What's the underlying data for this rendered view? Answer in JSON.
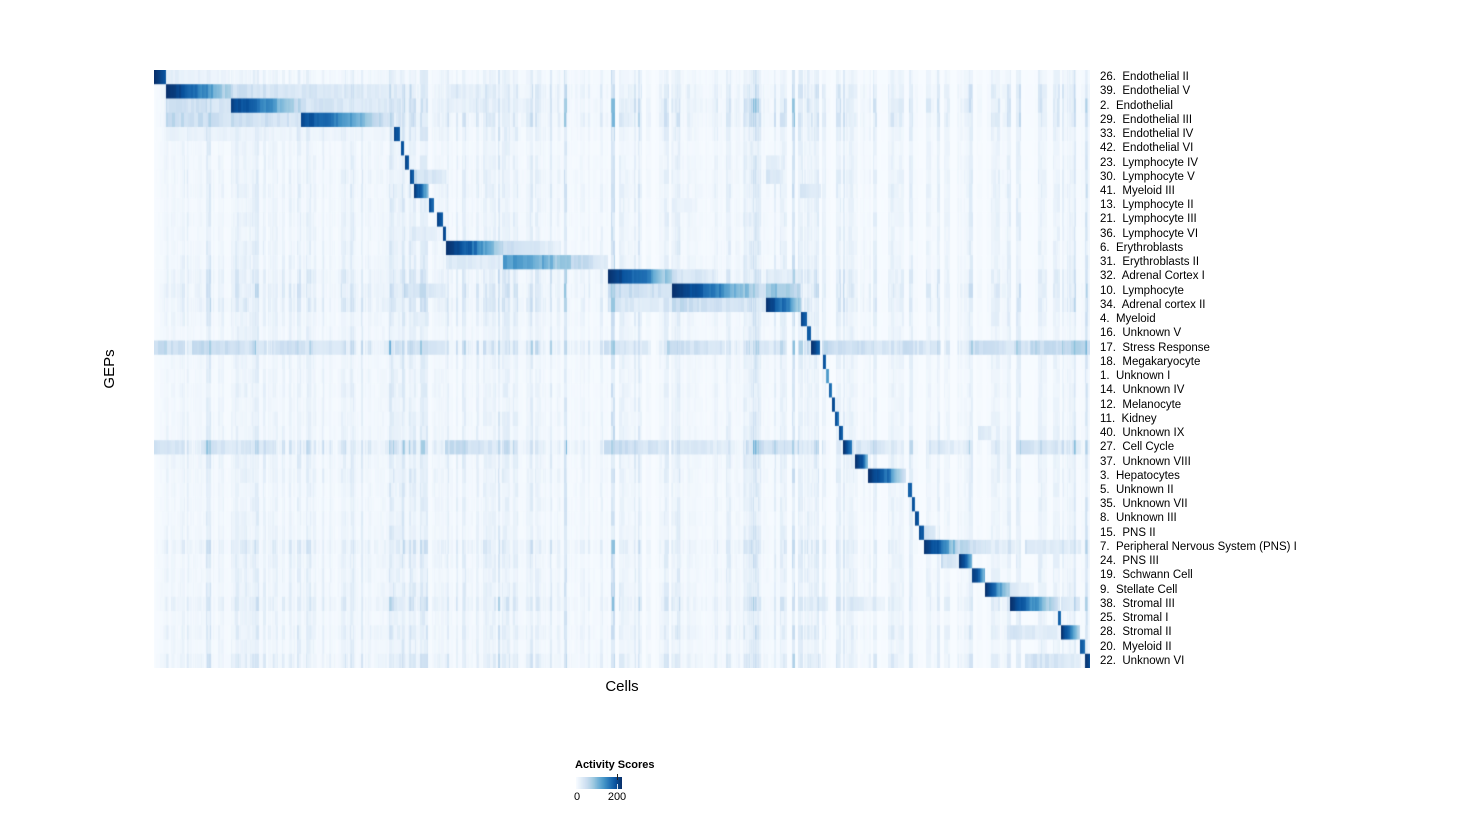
{
  "figure": {
    "background": "#ffffff",
    "y_axis_label": "GEPs",
    "x_axis_label": "Cells"
  },
  "legend": {
    "title": "Activity Scores",
    "tick_labels": [
      "0",
      "200"
    ],
    "tick_values": [
      0,
      200
    ],
    "value_min": 0,
    "value_max": 224
  },
  "chart_data": {
    "type": "heatmap",
    "title": "",
    "xlabel": "Cells",
    "ylabel": "GEPs",
    "legend_title": "Activity Scores",
    "value_range": [
      0,
      224
    ],
    "grid": false,
    "legend_position": "bottom-left",
    "description": "Block-diagonal heatmap of GEP activity scores across cells; cells (columns) grouped by their dominant GEP (rows). Values below are normalized 0-1 of max ~224; segments are [x0,x1,v0,v1] fractions of plot width.",
    "colormap": {
      "name": "Blues",
      "stops": [
        "#f7fbff",
        "#deebf7",
        "#c6dbef",
        "#9ecae1",
        "#6baed6",
        "#4292c6",
        "#2171b5",
        "#08519c",
        "#08306b"
      ]
    },
    "noise": {
      "seed": 1337,
      "base": 0.2,
      "spike_chance": 0.055
    },
    "hot_columns": [
      [
        0.63,
        0.646,
        0.1
      ],
      [
        0.695,
        0.71,
        0.07
      ],
      [
        0.74,
        0.752,
        0.06
      ],
      [
        0.298,
        0.312,
        0.05
      ],
      [
        0.266,
        0.274,
        0.05
      ],
      [
        0.553,
        0.562,
        0.05
      ],
      [
        0.858,
        0.87,
        0.05
      ],
      [
        0.973,
        0.985,
        0.06
      ],
      [
        0.995,
        1.0,
        0.07
      ],
      [
        0.013,
        0.254,
        0.035
      ],
      [
        0.311,
        0.484,
        0.025
      ],
      [
        0.553,
        0.653,
        0.03
      ]
    ],
    "rows": [
      {
        "label": "26.  Endothelial II",
        "noise": 0.5,
        "segments": [
          [
            0.0,
            0.0128,
            1.0,
            0.85
          ],
          [
            0.0128,
            0.081,
            0.1,
            0.05
          ]
        ]
      },
      {
        "label": "39.  Endothelial V",
        "noise": 0.9,
        "segments": [
          [
            0.0128,
            0.045,
            1.0,
            0.78
          ],
          [
            0.045,
            0.0812,
            0.75,
            0.28
          ],
          [
            0.0812,
            0.156,
            0.22,
            0.14
          ],
          [
            0.156,
            0.2543,
            0.16,
            0.09
          ],
          [
            0.311,
            0.372,
            0.1,
            0.06
          ]
        ]
      },
      {
        "label": "2.  Endothelial",
        "noise": 1.0,
        "segments": [
          [
            0.0128,
            0.0812,
            0.24,
            0.16
          ],
          [
            0.0812,
            0.115,
            0.95,
            0.72
          ],
          [
            0.115,
            0.156,
            0.7,
            0.24
          ],
          [
            0.156,
            0.2543,
            0.18,
            0.11
          ],
          [
            0.311,
            0.4,
            0.09,
            0.05
          ]
        ]
      },
      {
        "label": "29.  Endothelial III",
        "noise": 1.0,
        "segments": [
          [
            0.0128,
            0.0812,
            0.26,
            0.18
          ],
          [
            0.0812,
            0.156,
            0.24,
            0.16
          ],
          [
            0.156,
            0.2,
            0.92,
            0.66
          ],
          [
            0.2,
            0.2543,
            0.64,
            0.16
          ]
        ]
      },
      {
        "label": "33.  Endothelial IV",
        "noise": 0.6,
        "segments": [
          [
            0.0128,
            0.2543,
            0.07,
            0.04
          ],
          [
            0.256,
            0.262,
            0.95,
            0.82
          ]
        ]
      },
      {
        "label": "42.  Endothelial VI",
        "noise": 0.45,
        "segments": [
          [
            0.263,
            0.267,
            0.9,
            0.78
          ]
        ]
      },
      {
        "label": "23.  Lymphocyte IV",
        "noise": 0.5,
        "segments": [
          [
            0.268,
            0.272,
            0.95,
            0.84
          ],
          [
            0.6528,
            0.668,
            0.14,
            0.09
          ]
        ]
      },
      {
        "label": "30.  Lymphocyte V",
        "noise": 0.6,
        "segments": [
          [
            0.2725,
            0.277,
            0.95,
            0.8
          ],
          [
            0.277,
            0.311,
            0.22,
            0.11
          ],
          [
            0.6528,
            0.672,
            0.18,
            0.1
          ]
        ]
      },
      {
        "label": "41.  Myeloid III",
        "noise": 0.6,
        "segments": [
          [
            0.277,
            0.286,
            1.0,
            0.75
          ],
          [
            0.286,
            0.2928,
            0.72,
            0.32
          ],
          [
            0.69,
            0.712,
            0.14,
            0.09
          ]
        ]
      },
      {
        "label": "13.  Lymphocyte II",
        "noise": 0.5,
        "segments": [
          [
            0.2928,
            0.2983,
            0.9,
            0.78
          ],
          [
            0.5534,
            0.58,
            0.09,
            0.05
          ]
        ]
      },
      {
        "label": "21.  Lymphocyte III",
        "noise": 0.55,
        "segments": [
          [
            0.3023,
            0.3077,
            0.92,
            0.78
          ]
        ]
      },
      {
        "label": "36.  Lymphocyte VI",
        "noise": 0.5,
        "segments": [
          [
            0.3077,
            0.3109,
            0.95,
            0.84
          ],
          [
            0.2714,
            0.3023,
            0.13,
            0.07
          ]
        ]
      },
      {
        "label": "6.  Erythroblasts",
        "noise": 0.55,
        "segments": [
          [
            0.3109,
            0.345,
            1.0,
            0.72
          ],
          [
            0.345,
            0.3718,
            0.7,
            0.3
          ],
          [
            0.3718,
            0.434,
            0.22,
            0.09
          ]
        ]
      },
      {
        "label": "31.  Erythroblasts II",
        "noise": 0.6,
        "segments": [
          [
            0.3109,
            0.3718,
            0.16,
            0.09
          ],
          [
            0.3718,
            0.42,
            0.6,
            0.46
          ],
          [
            0.42,
            0.484,
            0.44,
            0.11
          ]
        ]
      },
      {
        "label": "32.  Adrenal Cortex I",
        "noise": 0.8,
        "segments": [
          [
            0.485,
            0.53,
            1.0,
            0.66
          ],
          [
            0.53,
            0.5534,
            0.63,
            0.26
          ],
          [
            0.5534,
            0.6,
            0.2,
            0.11
          ],
          [
            0.6528,
            0.69,
            0.14,
            0.09
          ]
        ]
      },
      {
        "label": "10.  Lymphocyte",
        "noise": 1.0,
        "segments": [
          [
            0.2671,
            0.3109,
            0.2,
            0.11
          ],
          [
            0.485,
            0.5534,
            0.26,
            0.16
          ],
          [
            0.5534,
            0.6,
            1.0,
            0.72
          ],
          [
            0.6,
            0.6528,
            0.7,
            0.2
          ],
          [
            0.6528,
            0.6902,
            0.42,
            0.28
          ]
        ]
      },
      {
        "label": "34.  Adrenal cortex II",
        "noise": 0.9,
        "segments": [
          [
            0.485,
            0.5534,
            0.16,
            0.1
          ],
          [
            0.5534,
            0.6528,
            0.24,
            0.13
          ],
          [
            0.6528,
            0.68,
            1.0,
            0.62
          ],
          [
            0.68,
            0.6902,
            0.58,
            0.28
          ]
        ]
      },
      {
        "label": "4.  Myeloid",
        "noise": 0.6,
        "segments": [
          [
            0.6902,
            0.6966,
            0.95,
            0.8
          ],
          [
            0.277,
            0.2928,
            0.13,
            0.08
          ]
        ]
      },
      {
        "label": "16.  Unknown V",
        "noise": 0.5,
        "segments": [
          [
            0.6966,
            0.7019,
            0.9,
            0.78
          ]
        ]
      },
      {
        "label": "17.  Stress Response",
        "noise": 1.4,
        "segments": [
          [
            0.7019,
            0.7115,
            1.0,
            0.76
          ],
          [
            0.0,
            0.03,
            0.26,
            0.18
          ],
          [
            0.04,
            0.12,
            0.24,
            0.16
          ],
          [
            0.13,
            0.2,
            0.21,
            0.14
          ],
          [
            0.27,
            0.31,
            0.24,
            0.14
          ],
          [
            0.48,
            0.53,
            0.19,
            0.11
          ],
          [
            0.55,
            0.61,
            0.24,
            0.14
          ],
          [
            0.64,
            0.67,
            0.19,
            0.11
          ],
          [
            0.7151,
            0.79,
            0.26,
            0.14
          ],
          [
            0.8,
            0.84,
            0.21,
            0.11
          ],
          [
            0.87,
            0.935,
            0.24,
            0.14
          ],
          [
            0.935,
            0.97,
            0.28,
            0.19
          ],
          [
            0.97,
            1.0,
            0.33,
            0.24
          ]
        ]
      },
      {
        "label": "18.  Megakaryocyte",
        "noise": 0.5,
        "segments": [
          [
            0.7137,
            0.7169,
            0.9,
            0.78
          ]
        ]
      },
      {
        "label": "1.  Unknown I",
        "noise": 0.45,
        "segments": [
          [
            0.7169,
            0.7201,
            0.62,
            0.5
          ]
        ]
      },
      {
        "label": "14.  Unknown IV",
        "noise": 0.5,
        "segments": [
          [
            0.7201,
            0.7233,
            0.9,
            0.76
          ]
        ]
      },
      {
        "label": "12.  Melanocyte",
        "noise": 0.45,
        "segments": [
          [
            0.7233,
            0.727,
            0.92,
            0.8
          ]
        ]
      },
      {
        "label": "11.  Kidney",
        "noise": 0.5,
        "segments": [
          [
            0.727,
            0.7308,
            0.9,
            0.77
          ]
        ]
      },
      {
        "label": "40.  Unknown IX",
        "noise": 0.55,
        "segments": [
          [
            0.7308,
            0.7361,
            0.95,
            0.8
          ],
          [
            0.88,
            0.895,
            0.13,
            0.08
          ]
        ]
      },
      {
        "label": "27.  Cell Cycle",
        "noise": 1.3,
        "segments": [
          [
            0.7361,
            0.7457,
            1.0,
            0.72
          ],
          [
            0.0,
            0.03,
            0.23,
            0.14
          ],
          [
            0.05,
            0.13,
            0.19,
            0.11
          ],
          [
            0.31,
            0.37,
            0.24,
            0.14
          ],
          [
            0.48,
            0.55,
            0.24,
            0.14
          ],
          [
            0.56,
            0.62,
            0.17,
            0.09
          ],
          [
            0.64,
            0.71,
            0.21,
            0.11
          ],
          [
            0.75,
            0.8,
            0.17,
            0.09
          ],
          [
            0.83,
            0.87,
            0.14,
            0.07
          ],
          [
            0.92,
            0.99,
            0.19,
            0.09
          ]
        ]
      },
      {
        "label": "37.  Unknown VIII",
        "noise": 0.6,
        "segments": [
          [
            0.7489,
            0.757,
            1.0,
            0.86
          ],
          [
            0.757,
            0.7628,
            0.82,
            0.38
          ]
        ]
      },
      {
        "label": "3.  Hepatocytes",
        "noise": 0.6,
        "segments": [
          [
            0.7628,
            0.785,
            1.0,
            0.72
          ],
          [
            0.785,
            0.8034,
            0.68,
            0.18
          ]
        ]
      },
      {
        "label": "5.  Unknown II",
        "noise": 0.5,
        "segments": [
          [
            0.8045,
            0.8088,
            0.9,
            0.76
          ]
        ]
      },
      {
        "label": "35.  Unknown VII",
        "noise": 0.5,
        "segments": [
          [
            0.8088,
            0.813,
            0.88,
            0.74
          ]
        ]
      },
      {
        "label": "8.  Unknown III",
        "noise": 0.5,
        "segments": [
          [
            0.813,
            0.8173,
            0.9,
            0.75
          ]
        ]
      },
      {
        "label": "15.  PNS II",
        "noise": 0.5,
        "segments": [
          [
            0.8173,
            0.8216,
            0.92,
            0.8
          ],
          [
            0.8216,
            0.835,
            0.18,
            0.11
          ]
        ]
      },
      {
        "label": "7.  Peripheral Nervous System (PNS) I",
        "noise": 0.9,
        "segments": [
          [
            0.8216,
            0.838,
            1.0,
            0.82
          ],
          [
            0.838,
            0.859,
            0.78,
            0.28
          ],
          [
            0.859,
            0.888,
            0.28,
            0.16
          ],
          [
            0.888,
            0.92,
            0.13,
            0.07
          ],
          [
            0.93,
            0.99,
            0.16,
            0.09
          ]
        ]
      },
      {
        "label": "24.  PNS III",
        "noise": 0.6,
        "segments": [
          [
            0.84,
            0.859,
            0.22,
            0.13
          ],
          [
            0.859,
            0.868,
            1.0,
            0.82
          ],
          [
            0.868,
            0.8739,
            0.78,
            0.38
          ]
        ]
      },
      {
        "label": "19.  Schwann Cell",
        "noise": 0.55,
        "segments": [
          [
            0.8739,
            0.882,
            0.95,
            0.8
          ],
          [
            0.882,
            0.8878,
            0.78,
            0.38
          ]
        ]
      },
      {
        "label": "9.  Stellate Cell",
        "noise": 0.6,
        "segments": [
          [
            0.8878,
            0.9,
            1.0,
            0.72
          ],
          [
            0.9,
            0.9145,
            0.68,
            0.24
          ],
          [
            0.9145,
            0.94,
            0.13,
            0.07
          ]
        ]
      },
      {
        "label": "38.  Stromal III",
        "noise": 0.9,
        "segments": [
          [
            0.7,
            0.72,
            0.13,
            0.08
          ],
          [
            0.74,
            0.78,
            0.11,
            0.07
          ],
          [
            0.9145,
            0.935,
            1.0,
            0.72
          ],
          [
            0.935,
            0.9658,
            0.68,
            0.18
          ],
          [
            0.969,
            0.9893,
            0.18,
            0.11
          ]
        ]
      },
      {
        "label": "25.  Stromal I",
        "noise": 0.5,
        "segments": [
          [
            0.9658,
            0.969,
            0.85,
            0.7
          ]
        ]
      },
      {
        "label": "28.  Stromal II",
        "noise": 0.7,
        "segments": [
          [
            0.9145,
            0.9658,
            0.16,
            0.09
          ],
          [
            0.969,
            0.978,
            1.0,
            0.76
          ],
          [
            0.978,
            0.9893,
            0.72,
            0.28
          ]
        ]
      },
      {
        "label": "20.  Myeloid II",
        "noise": 0.5,
        "segments": [
          [
            0.9893,
            0.9936,
            0.85,
            0.7
          ]
        ]
      },
      {
        "label": "22.  Unknown VI",
        "noise": 0.8,
        "segments": [
          [
            0.7,
            0.712,
            0.13,
            0.08
          ],
          [
            0.93,
            0.99,
            0.2,
            0.11
          ],
          [
            0.9936,
            1.0,
            1.0,
            0.86
          ]
        ]
      }
    ]
  }
}
